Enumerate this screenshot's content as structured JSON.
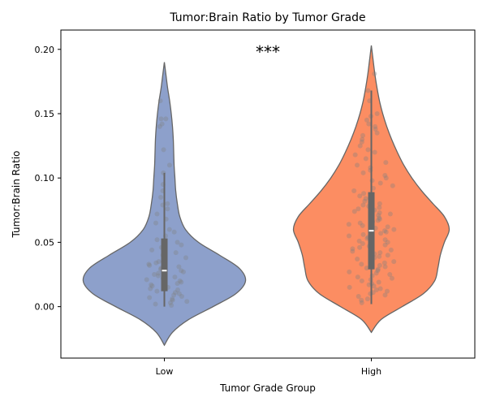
{
  "chart_data": {
    "type": "violin",
    "title": "Tumor:Brain Ratio by Tumor Grade",
    "xlabel": "Tumor Grade Group",
    "ylabel": "Tumor:Brain Ratio",
    "categories": [
      "Low",
      "High"
    ],
    "ylim": [
      -0.04,
      0.215
    ],
    "yticks": [
      0.0,
      0.05,
      0.1,
      0.15,
      0.2
    ],
    "ytick_labels": [
      "0.00",
      "0.05",
      "0.10",
      "0.15",
      "0.20"
    ],
    "grid": false,
    "annotation": "***",
    "groups": [
      {
        "category": "Low",
        "color": "#8da0cb",
        "violin_range": [
          -0.03,
          0.19
        ],
        "density_profile": [
          {
            "y": -0.03,
            "w": 0.0
          },
          {
            "y": -0.02,
            "w": 0.1
          },
          {
            "y": -0.01,
            "w": 0.3
          },
          {
            "y": 0.0,
            "w": 0.6
          },
          {
            "y": 0.01,
            "w": 0.88
          },
          {
            "y": 0.02,
            "w": 1.0
          },
          {
            "y": 0.03,
            "w": 0.92
          },
          {
            "y": 0.04,
            "w": 0.68
          },
          {
            "y": 0.05,
            "w": 0.42
          },
          {
            "y": 0.06,
            "w": 0.26
          },
          {
            "y": 0.07,
            "w": 0.19
          },
          {
            "y": 0.08,
            "w": 0.16
          },
          {
            "y": 0.09,
            "w": 0.14
          },
          {
            "y": 0.1,
            "w": 0.13
          },
          {
            "y": 0.11,
            "w": 0.12
          },
          {
            "y": 0.12,
            "w": 0.115
          },
          {
            "y": 0.13,
            "w": 0.11
          },
          {
            "y": 0.14,
            "w": 0.1
          },
          {
            "y": 0.15,
            "w": 0.085
          },
          {
            "y": 0.16,
            "w": 0.065
          },
          {
            "y": 0.17,
            "w": 0.04
          },
          {
            "y": 0.18,
            "w": 0.02
          },
          {
            "y": 0.19,
            "w": 0.0
          }
        ],
        "box": {
          "whisker_low": 0.0,
          "q1": 0.012,
          "median": 0.028,
          "q3": 0.053,
          "whisker_high": 0.104
        },
        "points": [
          0.001,
          0.002,
          0.003,
          0.004,
          0.005,
          0.006,
          0.007,
          0.008,
          0.009,
          0.01,
          0.011,
          0.012,
          0.013,
          0.014,
          0.015,
          0.016,
          0.017,
          0.018,
          0.019,
          0.02,
          0.021,
          0.022,
          0.023,
          0.024,
          0.025,
          0.026,
          0.027,
          0.028,
          0.029,
          0.03,
          0.031,
          0.032,
          0.033,
          0.034,
          0.035,
          0.036,
          0.038,
          0.04,
          0.042,
          0.044,
          0.046,
          0.048,
          0.05,
          0.052,
          0.055,
          0.058,
          0.06,
          0.065,
          0.068,
          0.072,
          0.076,
          0.079,
          0.08,
          0.085,
          0.09,
          0.095,
          0.104,
          0.11,
          0.122,
          0.14,
          0.142,
          0.146,
          0.146,
          0.16
        ]
      },
      {
        "category": "High",
        "color": "#fc8d62",
        "violin_range": [
          -0.02,
          0.203
        ],
        "density_profile": [
          {
            "y": -0.02,
            "w": 0.0
          },
          {
            "y": -0.01,
            "w": 0.12
          },
          {
            "y": 0.0,
            "w": 0.38
          },
          {
            "y": 0.01,
            "w": 0.64
          },
          {
            "y": 0.02,
            "w": 0.78
          },
          {
            "y": 0.03,
            "w": 0.82
          },
          {
            "y": 0.04,
            "w": 0.85
          },
          {
            "y": 0.05,
            "w": 0.9
          },
          {
            "y": 0.06,
            "w": 0.96
          },
          {
            "y": 0.07,
            "w": 0.9
          },
          {
            "y": 0.08,
            "w": 0.76
          },
          {
            "y": 0.09,
            "w": 0.62
          },
          {
            "y": 0.1,
            "w": 0.5
          },
          {
            "y": 0.11,
            "w": 0.4
          },
          {
            "y": 0.12,
            "w": 0.32
          },
          {
            "y": 0.13,
            "w": 0.25
          },
          {
            "y": 0.14,
            "w": 0.19
          },
          {
            "y": 0.15,
            "w": 0.14
          },
          {
            "y": 0.16,
            "w": 0.1
          },
          {
            "y": 0.17,
            "w": 0.07
          },
          {
            "y": 0.18,
            "w": 0.045
          },
          {
            "y": 0.19,
            "w": 0.025
          },
          {
            "y": 0.203,
            "w": 0.0
          }
        ],
        "box": {
          "whisker_low": 0.002,
          "q1": 0.029,
          "median": 0.059,
          "q3": 0.089,
          "whisker_high": 0.168
        },
        "points": [
          0.003,
          0.005,
          0.006,
          0.008,
          0.009,
          0.01,
          0.011,
          0.012,
          0.013,
          0.014,
          0.015,
          0.016,
          0.017,
          0.018,
          0.019,
          0.02,
          0.021,
          0.022,
          0.023,
          0.024,
          0.025,
          0.026,
          0.027,
          0.028,
          0.029,
          0.03,
          0.031,
          0.032,
          0.033,
          0.034,
          0.035,
          0.036,
          0.037,
          0.038,
          0.039,
          0.04,
          0.041,
          0.042,
          0.043,
          0.044,
          0.045,
          0.046,
          0.047,
          0.048,
          0.049,
          0.05,
          0.051,
          0.052,
          0.053,
          0.054,
          0.055,
          0.056,
          0.057,
          0.058,
          0.059,
          0.06,
          0.061,
          0.062,
          0.063,
          0.064,
          0.065,
          0.066,
          0.067,
          0.068,
          0.069,
          0.07,
          0.071,
          0.072,
          0.073,
          0.074,
          0.075,
          0.076,
          0.077,
          0.078,
          0.079,
          0.08,
          0.082,
          0.084,
          0.086,
          0.088,
          0.09,
          0.092,
          0.094,
          0.096,
          0.098,
          0.1,
          0.102,
          0.104,
          0.106,
          0.108,
          0.11,
          0.112,
          0.115,
          0.118,
          0.12,
          0.122,
          0.125,
          0.128,
          0.13,
          0.133,
          0.135,
          0.138,
          0.14,
          0.142,
          0.145,
          0.148,
          0.15,
          0.16,
          0.168,
          0.181
        ]
      }
    ],
    "style": {
      "outline_color": "#666666",
      "point_color": "#808080",
      "box_color": "#666666",
      "median_color": "#ffffff",
      "axis_color": "#000000"
    }
  }
}
